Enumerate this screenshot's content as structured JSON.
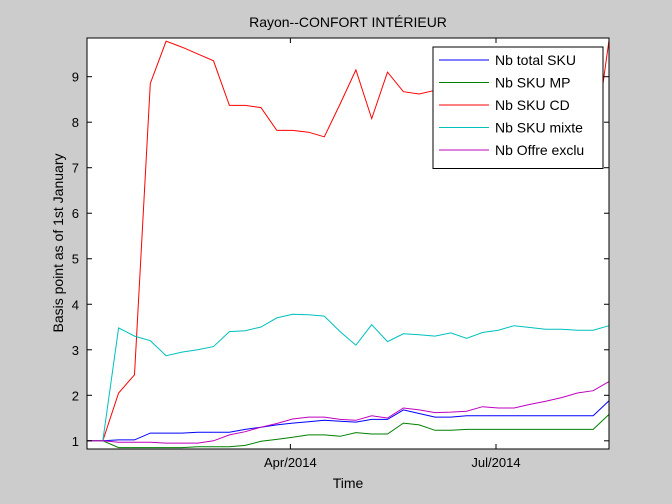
{
  "chart_data": {
    "type": "line",
    "title": "Rayon--CONFORT INTÉRIEUR",
    "xlabel": "Time",
    "ylabel": "Basis point as of 1st January",
    "x_dates": [
      "2014-01-01",
      "2014-01-08",
      "2014-01-15",
      "2014-01-22",
      "2014-01-29",
      "2014-02-05",
      "2014-02-12",
      "2014-02-19",
      "2014-02-26",
      "2014-03-05",
      "2014-03-12",
      "2014-03-19",
      "2014-03-26",
      "2014-04-02",
      "2014-04-09",
      "2014-04-16",
      "2014-04-23",
      "2014-04-30",
      "2014-05-07",
      "2014-05-14",
      "2014-05-21",
      "2014-05-28",
      "2014-06-04",
      "2014-06-11",
      "2014-06-18",
      "2014-06-25",
      "2014-07-02",
      "2014-07-09",
      "2014-07-16",
      "2014-07-23",
      "2014-07-30",
      "2014-08-06",
      "2014-08-13",
      "2014-08-20"
    ],
    "x_ticks": [
      "Apr/2014",
      "Jul/2014"
    ],
    "x_tick_dates": [
      "2014-04-01",
      "2014-07-01"
    ],
    "xlim": [
      "2014-01-01",
      "2014-08-20"
    ],
    "ylim": [
      0.82,
      9.85
    ],
    "yticks": [
      1,
      2,
      3,
      4,
      5,
      6,
      7,
      8,
      9
    ],
    "grid": false,
    "legend_position": "top-right",
    "series": [
      {
        "name": "Nb total SKU",
        "color": "#0000ff",
        "values": [
          1.0,
          1.0,
          1.02,
          1.02,
          1.17,
          1.17,
          1.17,
          1.19,
          1.19,
          1.19,
          1.25,
          1.3,
          1.35,
          1.39,
          1.42,
          1.45,
          1.43,
          1.41,
          1.47,
          1.47,
          1.68,
          1.6,
          1.52,
          1.52,
          1.55,
          1.55,
          1.55,
          1.55,
          1.55,
          1.55,
          1.55,
          1.55,
          1.55,
          1.88
        ]
      },
      {
        "name": "Nb SKU MP",
        "color": "#008000",
        "values": [
          1.0,
          1.0,
          0.85,
          0.85,
          0.85,
          0.85,
          0.85,
          0.87,
          0.87,
          0.87,
          0.9,
          0.99,
          1.03,
          1.08,
          1.13,
          1.13,
          1.1,
          1.18,
          1.15,
          1.15,
          1.39,
          1.35,
          1.23,
          1.23,
          1.25,
          1.25,
          1.25,
          1.25,
          1.25,
          1.25,
          1.25,
          1.25,
          1.25,
          1.58
        ]
      },
      {
        "name": "Nb SKU CD",
        "color": "#ff0000",
        "values": [
          1.0,
          1.0,
          2.05,
          2.45,
          8.85,
          9.78,
          9.65,
          9.5,
          9.35,
          8.37,
          8.37,
          8.32,
          7.82,
          7.82,
          7.78,
          7.68,
          8.4,
          9.15,
          8.08,
          9.1,
          8.67,
          8.62,
          8.7,
          8.9,
          8.95,
          8.8,
          8.7,
          8.75,
          8.75,
          8.85,
          8.8,
          8.9,
          7.3,
          9.8
        ]
      },
      {
        "name": "Nb SKU mixte",
        "color": "#00bfbf",
        "values": [
          1.0,
          1.0,
          3.48,
          3.3,
          3.2,
          2.87,
          2.95,
          3.0,
          3.07,
          3.4,
          3.42,
          3.5,
          3.7,
          3.78,
          3.77,
          3.74,
          3.4,
          3.1,
          3.55,
          3.18,
          3.35,
          3.33,
          3.3,
          3.37,
          3.25,
          3.38,
          3.43,
          3.53,
          3.49,
          3.45,
          3.45,
          3.43,
          3.43,
          3.53
        ]
      },
      {
        "name": "Nb Offre exclu",
        "color": "#bf00bf",
        "values": [
          1.0,
          1.0,
          0.97,
          0.97,
          0.97,
          0.95,
          0.95,
          0.95,
          1.0,
          1.13,
          1.2,
          1.3,
          1.38,
          1.48,
          1.52,
          1.52,
          1.47,
          1.45,
          1.55,
          1.5,
          1.72,
          1.68,
          1.62,
          1.63,
          1.65,
          1.75,
          1.72,
          1.72,
          1.8,
          1.87,
          1.95,
          2.05,
          2.1,
          2.3
        ]
      }
    ]
  }
}
